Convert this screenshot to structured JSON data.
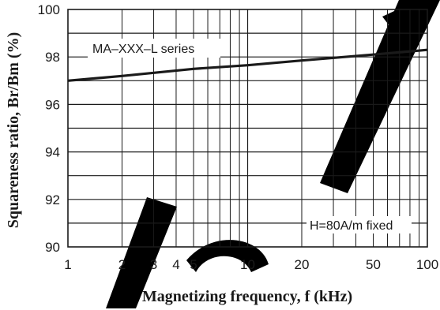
{
  "chart_data": {
    "type": "line",
    "xlabel": "Magnetizing frequency, f (kHz)",
    "ylabel": "Squareness ratio, Br/Bm (%)",
    "x_scale": "log",
    "xlim": [
      1,
      100
    ],
    "ylim": [
      90,
      100
    ],
    "x_ticks": [
      1,
      2,
      3,
      4,
      5,
      10,
      20,
      50,
      100
    ],
    "x_tick_labels": [
      "1",
      "2",
      "3",
      "4",
      "5",
      "10",
      "20",
      "50",
      "100"
    ],
    "y_ticks": [
      90,
      92,
      94,
      96,
      98,
      100
    ],
    "y_tick_labels": [
      "90",
      "92",
      "94",
      "96",
      "98",
      "100"
    ],
    "grid": true,
    "annotations": [
      "MA–XXX–L series",
      "H=80A/m fixed"
    ],
    "series": [
      {
        "x": [
          1,
          2,
          5,
          10,
          20,
          50,
          100
        ],
        "y": [
          97.0,
          97.2,
          97.5,
          97.65,
          97.85,
          98.1,
          98.3
        ]
      }
    ],
    "colors": {
      "line": "#1a1a1a",
      "grid": "#1a1a1a",
      "background": "#ffffff",
      "watermark": "#000000"
    }
  }
}
